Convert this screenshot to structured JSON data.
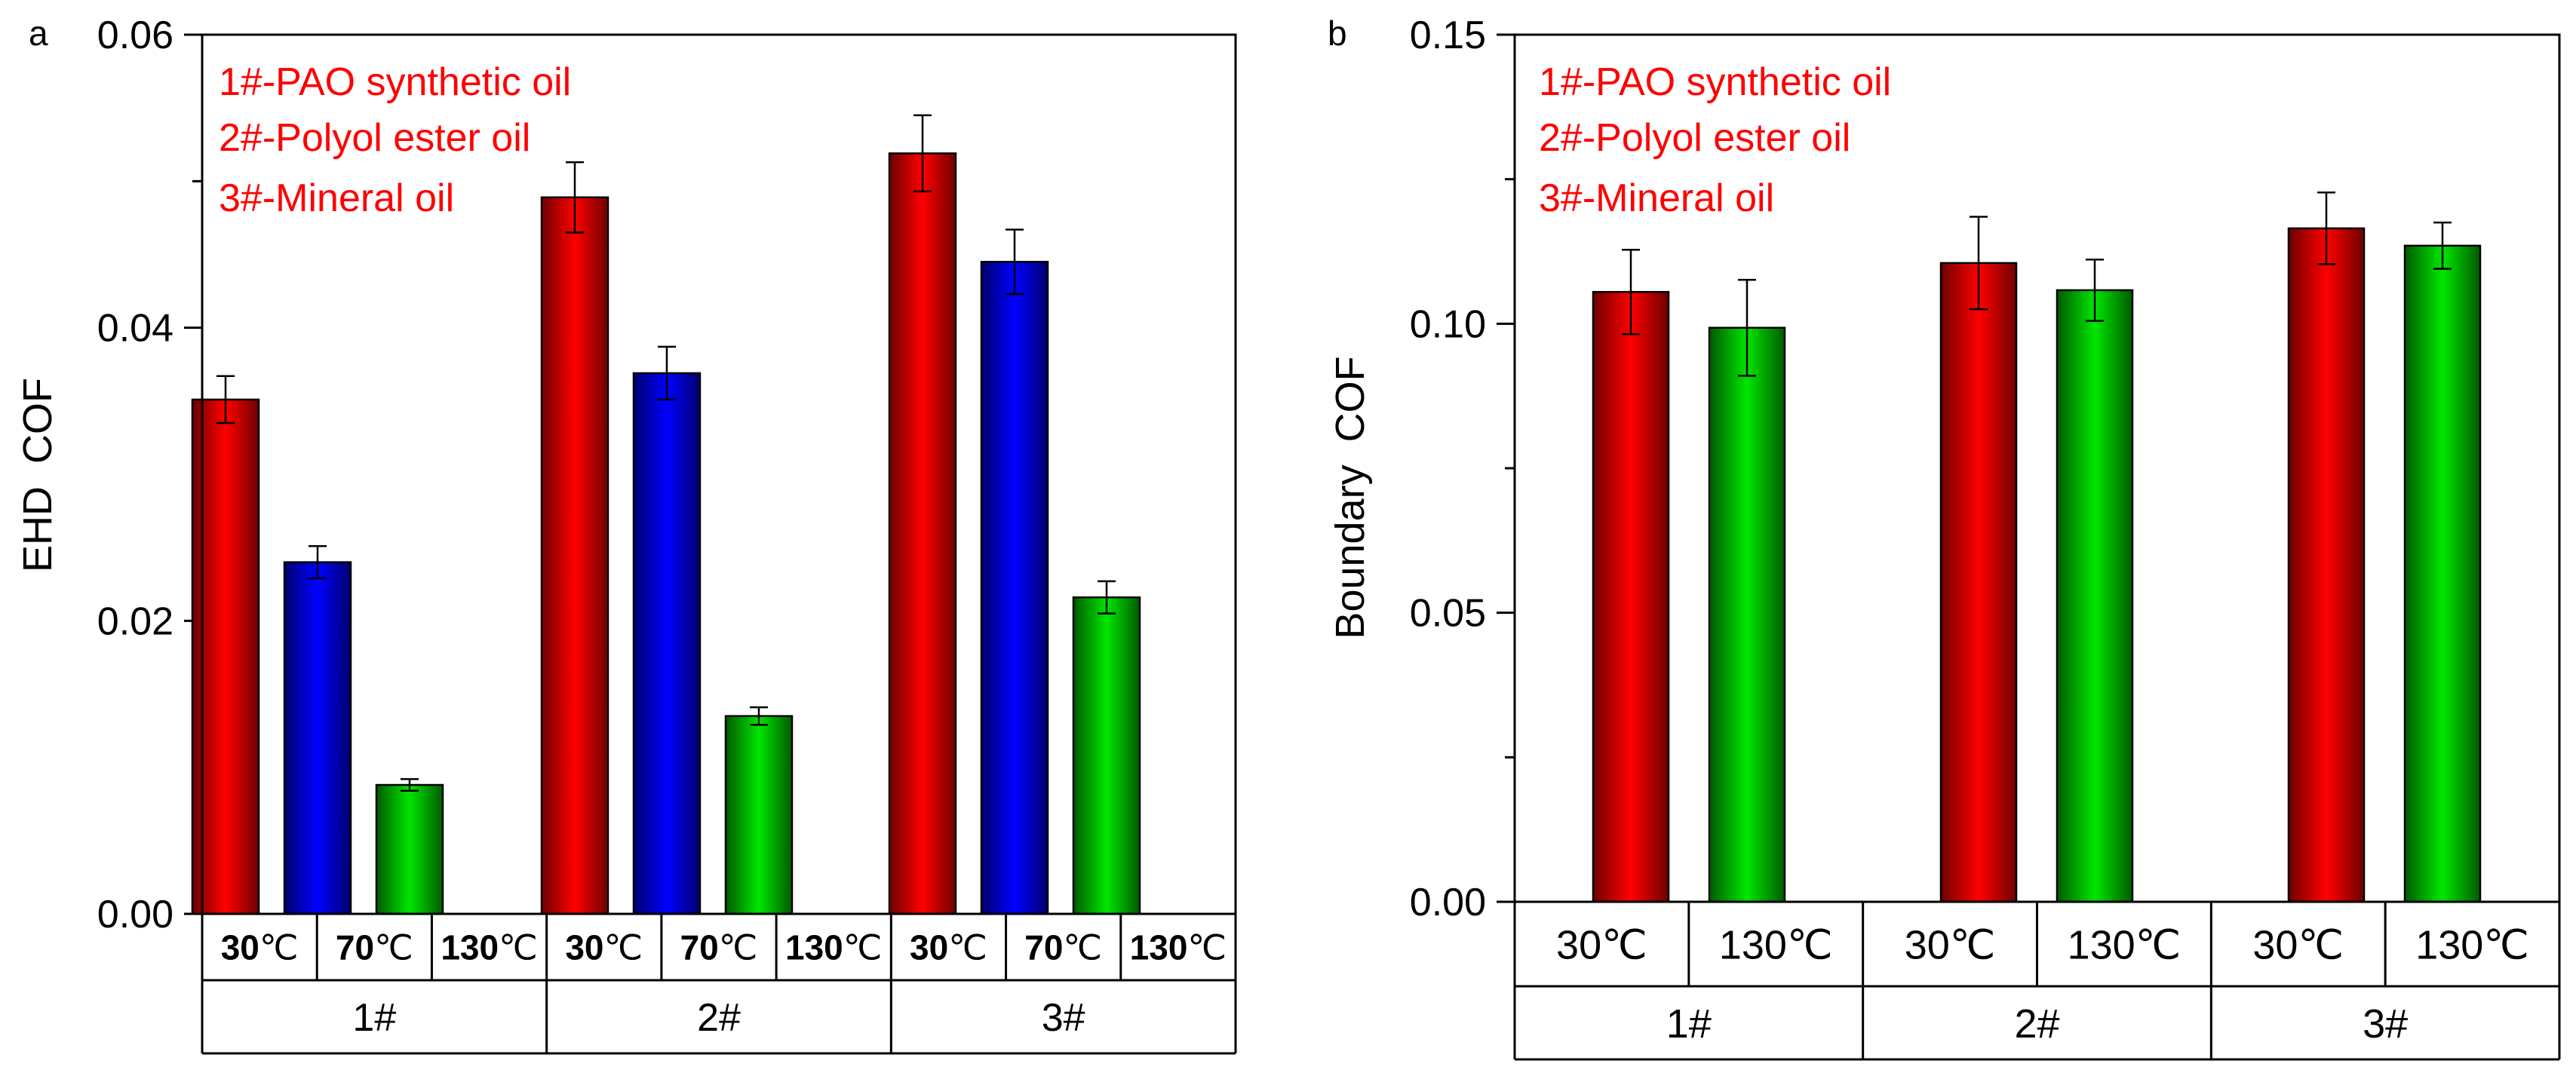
{
  "colors": {
    "red": "#ff0000",
    "blue": "#0000ff",
    "green": "#00e100",
    "legend_text": "#ff0000",
    "axis": "#000000"
  },
  "chart_data": [
    {
      "type": "bar",
      "panel_label": "a",
      "ylabel": "EHD  COF",
      "ylim": [
        0,
        0.06
      ],
      "yticks": [
        "0.00",
        "0.02",
        "0.04",
        "0.06"
      ],
      "groups": [
        "1#",
        "2#",
        "3#"
      ],
      "sub_categories": [
        {
          "num": "30",
          "unit": "℃"
        },
        {
          "num": "70",
          "unit": "℃"
        },
        {
          "num": "130",
          "unit": "℃"
        }
      ],
      "series": [
        {
          "temp": "30℃",
          "color": "red",
          "values": [
            0.0351,
            0.0489,
            0.0519
          ],
          "errors": [
            0.0016,
            0.0024,
            0.0026
          ]
        },
        {
          "temp": "70℃",
          "color": "blue",
          "values": [
            0.024,
            0.0369,
            0.0445
          ],
          "errors": [
            0.0011,
            0.0018,
            0.0022
          ]
        },
        {
          "temp": "130℃",
          "color": "green",
          "values": [
            0.0088,
            0.0135,
            0.0216
          ],
          "errors": [
            0.0004,
            0.0006,
            0.0011
          ]
        }
      ],
      "legend": [
        "1#-PAO synthetic oil",
        "2#-Polyol ester oil",
        "3#-Mineral oil"
      ]
    },
    {
      "type": "bar",
      "panel_label": "b",
      "ylabel": "Boundary  COF",
      "ylim": [
        0,
        0.15
      ],
      "yticks": [
        "0.00",
        "0.05",
        "0.10",
        "0.15"
      ],
      "groups": [
        "1#",
        "2#",
        "3#"
      ],
      "sub_categories": [
        {
          "num": "30",
          "unit": "℃"
        },
        {
          "num": "130",
          "unit": "℃"
        }
      ],
      "series": [
        {
          "temp": "30℃",
          "color": "red",
          "values": [
            0.1055,
            0.1105,
            0.1165
          ],
          "errors": [
            0.0073,
            0.008,
            0.0062
          ]
        },
        {
          "temp": "130℃",
          "color": "green",
          "values": [
            0.0993,
            0.1058,
            0.1135
          ],
          "errors": [
            0.0083,
            0.0053,
            0.004
          ]
        }
      ],
      "legend": [
        "1#-PAO synthetic oil",
        "2#-Polyol ester oil",
        "3#-Mineral oil"
      ]
    }
  ]
}
